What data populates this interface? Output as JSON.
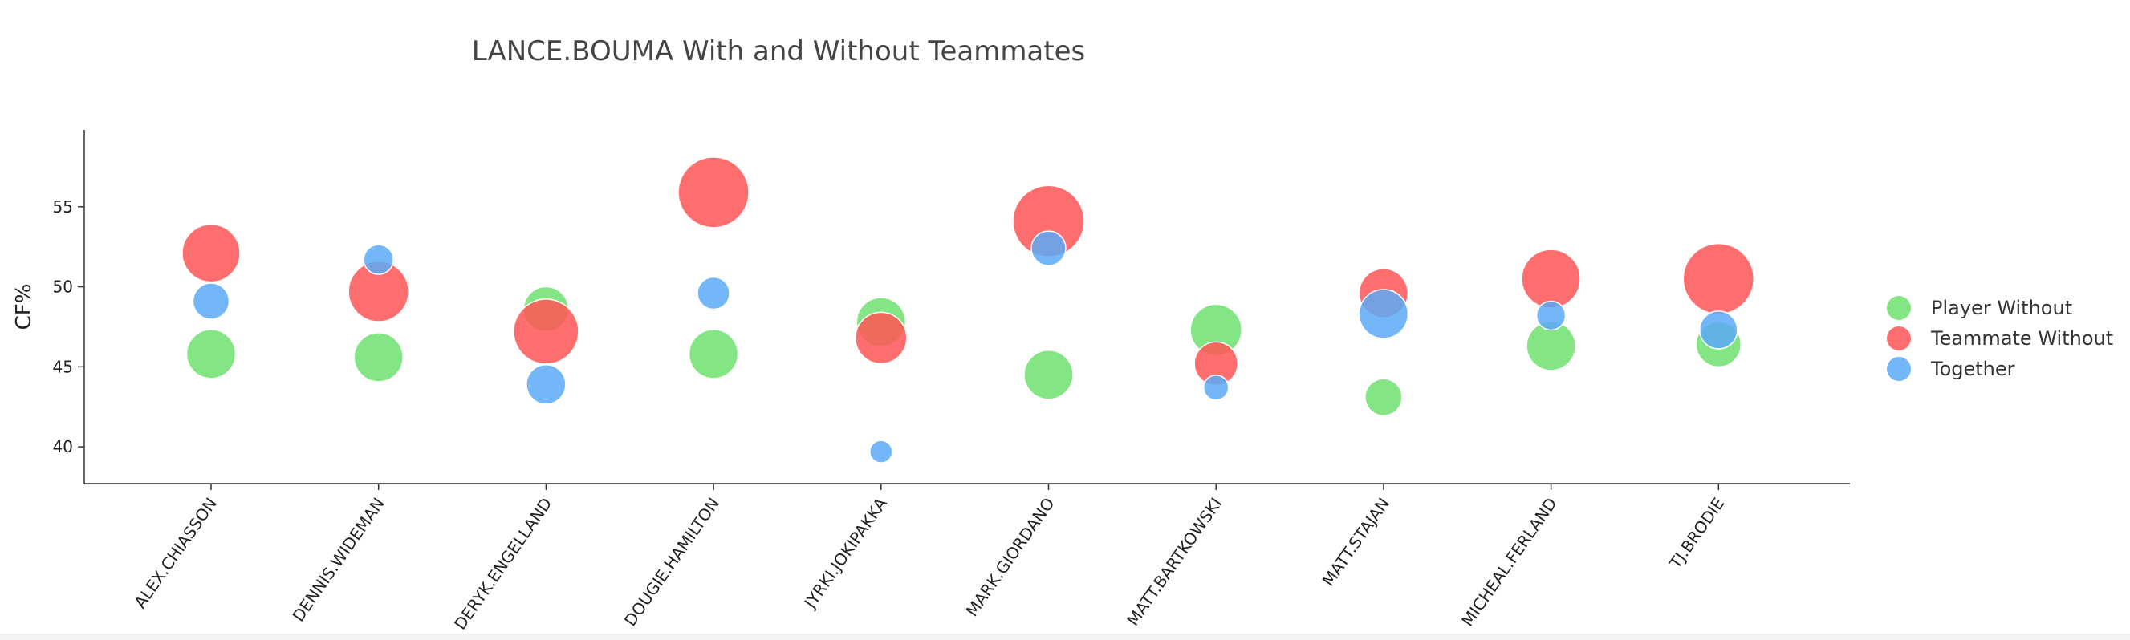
{
  "chart_data": {
    "type": "scatter",
    "title": "LANCE.BOUMA With and Without Teammates",
    "xlabel": "",
    "ylabel": "CF%",
    "categories": [
      "ALEX.CHIASSON",
      "DENNIS.WIDEMAN",
      "DERYK.ENGELLAND",
      "DOUGIE.HAMILTON",
      "JYRKI.JOKIPAKKA",
      "MARK.GIORDANO",
      "MATT.BARTKOWSKI",
      "MATT.STAJAN",
      "MICHEAL.FERLAND",
      "TJ.BRODIE"
    ],
    "ylim": [
      37.7,
      59.8
    ],
    "yticks": [
      40,
      45,
      50,
      55
    ],
    "grid": false,
    "legend_position": "right",
    "series": [
      {
        "name": "Player Without",
        "color": "#6ee06e",
        "values": [
          45.8,
          45.6,
          48.6,
          45.8,
          47.8,
          44.5,
          47.3,
          43.1,
          46.3,
          46.4
        ],
        "sizes": [
          61,
          61,
          56,
          61,
          61,
          61,
          64,
          46,
          61,
          56
        ]
      },
      {
        "name": "Teammate Without",
        "color": "#ff5555",
        "values": [
          52.1,
          49.7,
          47.2,
          55.9,
          46.8,
          54.1,
          45.2,
          49.6,
          50.5,
          50.5
        ],
        "sizes": [
          72,
          75,
          81,
          88,
          64,
          89,
          54,
          61,
          73,
          88
        ]
      },
      {
        "name": "Together",
        "color": "#5aaaf7",
        "values": [
          49.1,
          51.7,
          43.9,
          49.6,
          39.7,
          52.4,
          43.7,
          48.3,
          48.2,
          47.3
        ],
        "sizes": [
          45,
          37,
          49,
          40,
          28,
          43,
          31,
          61,
          36,
          47
        ]
      }
    ]
  }
}
